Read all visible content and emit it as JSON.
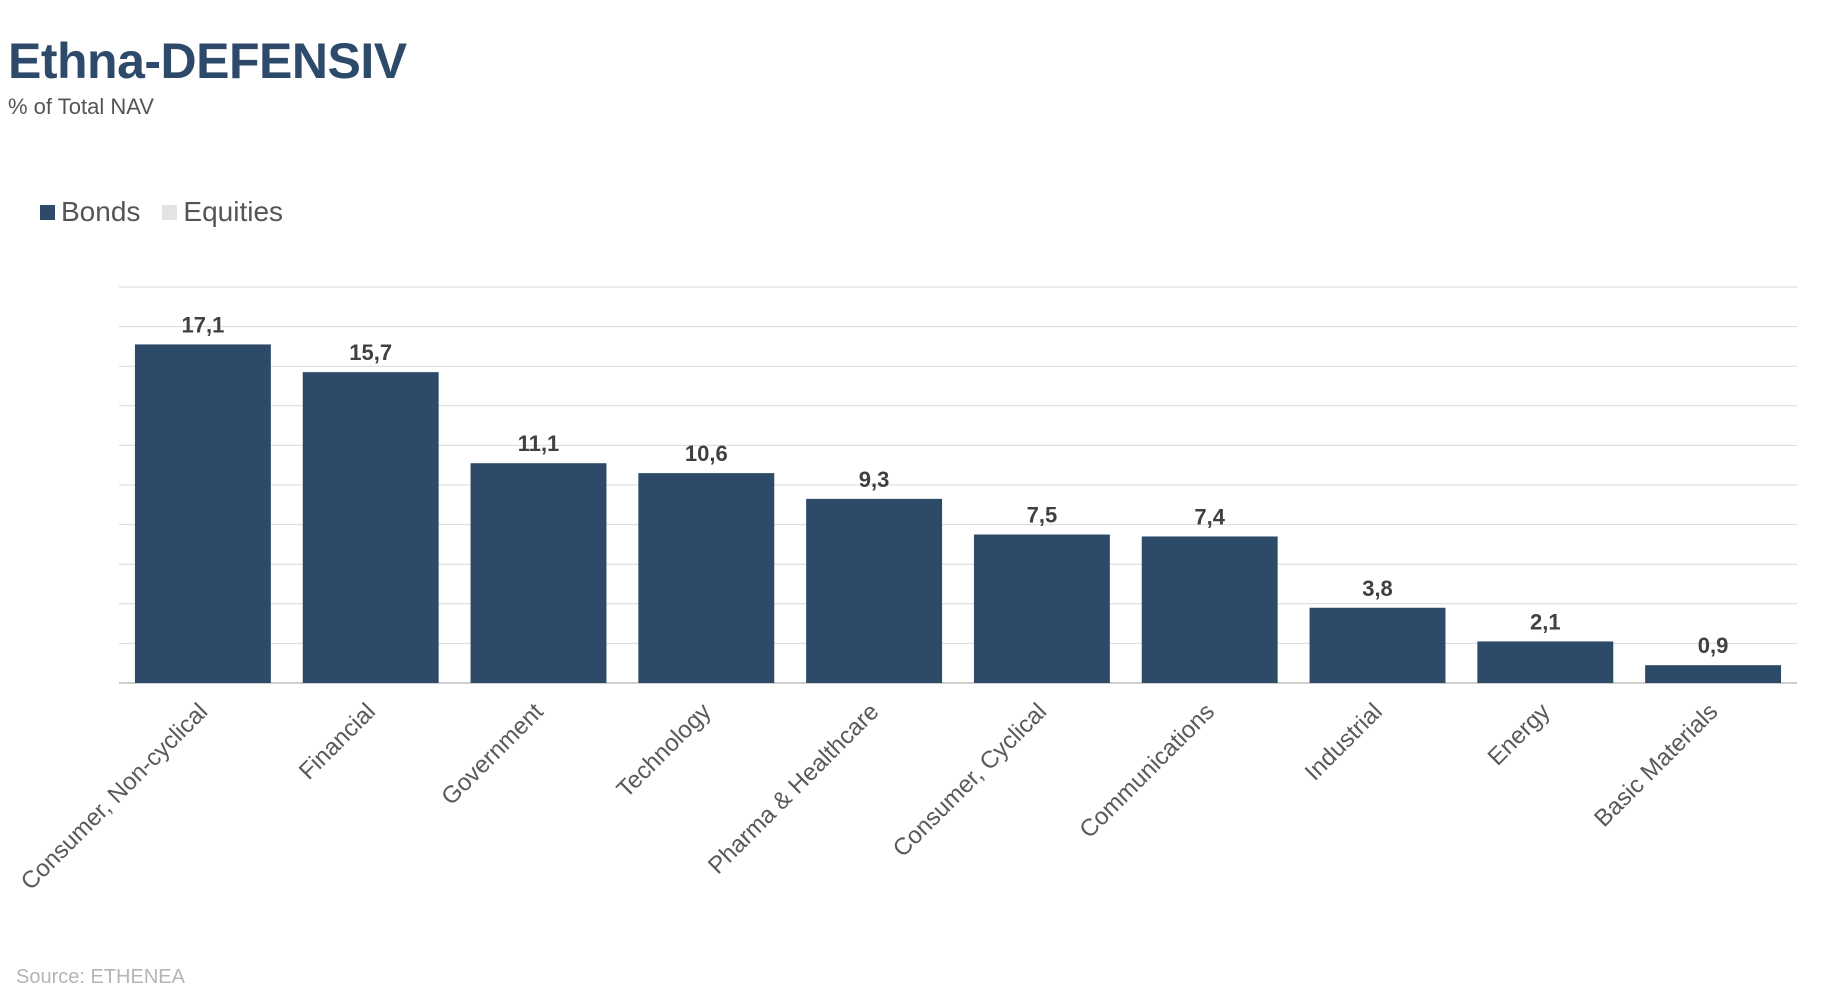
{
  "title": "Ethna-DEFENSIV",
  "subtitle": "% of Total NAV",
  "legend": [
    {
      "name": "Bonds",
      "color": "#2e4a69"
    },
    {
      "name": "Equities",
      "color": "#e3e3e3"
    }
  ],
  "source": "Source: ETHENEA",
  "chart_data": {
    "type": "bar",
    "categories": [
      "Consumer, Non-cyclical",
      "Financial",
      "Government",
      "Technology",
      "Pharma & Healthcare",
      "Consumer, Cyclical",
      "Communications",
      "Industrial",
      "Energy",
      "Basic Materials"
    ],
    "series": [
      {
        "name": "Bonds",
        "values": [
          17.1,
          15.7,
          11.1,
          10.6,
          9.3,
          7.5,
          7.4,
          3.8,
          2.1,
          0.9
        ],
        "labels": [
          "17,1",
          "15,7",
          "11,1",
          "10,6",
          "9,3",
          "7,5",
          "7,4",
          "3,8",
          "2,1",
          "0,9"
        ]
      },
      {
        "name": "Equities",
        "values": [
          0,
          0,
          0,
          0,
          0,
          0,
          0,
          0,
          0,
          0
        ]
      }
    ],
    "ylim": [
      0,
      20
    ],
    "grid": true,
    "legend_position": "top-left",
    "bar_color": "#2e4a69"
  }
}
